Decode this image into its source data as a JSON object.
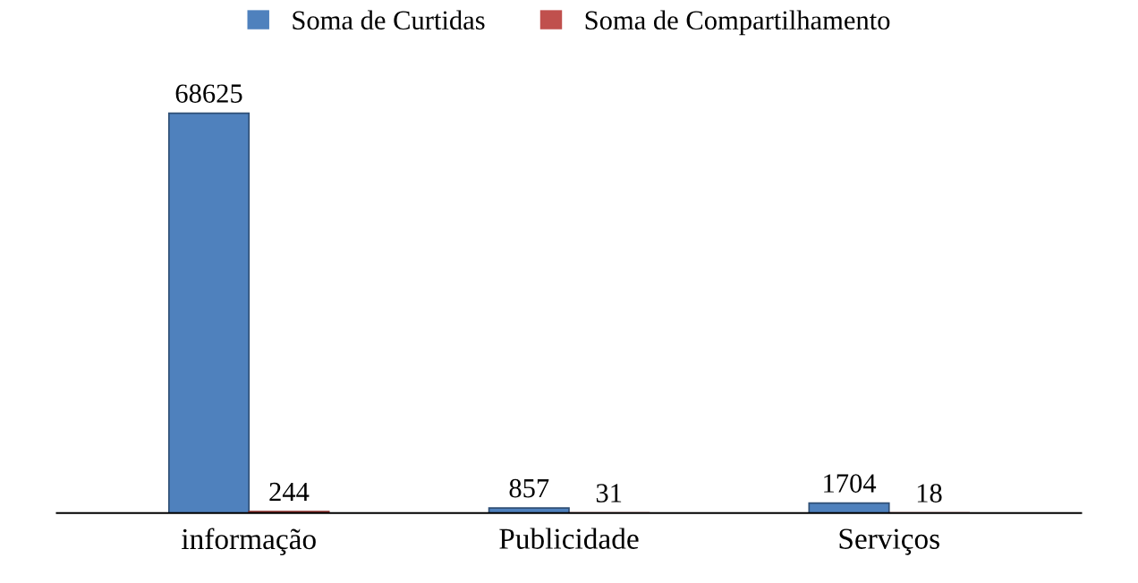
{
  "chart_data": {
    "type": "bar",
    "categories": [
      "informação",
      "Publicidade",
      "Serviços"
    ],
    "series": [
      {
        "name": "Soma de Curtidas",
        "color": "#4f81bd",
        "values": [
          68625,
          857,
          1704
        ]
      },
      {
        "name": "Soma de Compartilhamento",
        "color": "#c0504d",
        "values": [
          244,
          31,
          18
        ]
      }
    ],
    "data_labels": true,
    "legend": "top",
    "grid": false
  }
}
